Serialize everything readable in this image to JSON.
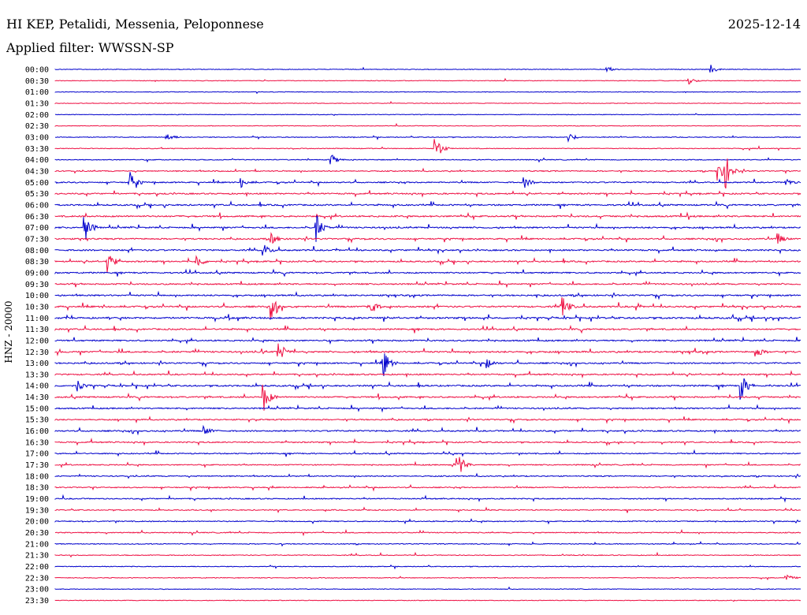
{
  "header": {
    "station": "HI KEP, Petalidi, Messenia, Peloponnese",
    "date": "2025-12-14",
    "filter": "Applied filter: WWSSN-SP"
  },
  "colors": {
    "even": "#0000cc",
    "odd": "#ee1144"
  },
  "chart_data": {
    "type": "line",
    "title": "HI KEP, Petalidi, Messenia, Peloponnese",
    "ylabel": "HNZ - 20000",
    "xlabel": "",
    "rows": [
      "00:00",
      "00:30",
      "01:00",
      "01:30",
      "02:00",
      "02:30",
      "03:00",
      "03:30",
      "04:00",
      "04:30",
      "05:00",
      "05:30",
      "06:00",
      "06:30",
      "07:00",
      "07:30",
      "08:00",
      "08:30",
      "09:00",
      "09:30",
      "10:00",
      "10:30",
      "11:00",
      "11:30",
      "12:00",
      "12:30",
      "13:00",
      "13:30",
      "14:00",
      "14:30",
      "15:00",
      "15:30",
      "16:00",
      "16:30",
      "17:00",
      "17:30",
      "18:00",
      "18:30",
      "19:00",
      "19:30",
      "20:00",
      "20:30",
      "21:00",
      "21:30",
      "22:00",
      "22:30",
      "23:00",
      "23:30"
    ],
    "activity": [
      0.04,
      0.05,
      0.04,
      0.03,
      0.03,
      0.03,
      0.12,
      0.12,
      0.18,
      0.35,
      0.45,
      0.55,
      0.6,
      0.65,
      0.6,
      0.55,
      0.6,
      0.55,
      0.55,
      0.55,
      0.6,
      0.7,
      0.75,
      0.6,
      0.55,
      0.7,
      0.55,
      0.55,
      0.65,
      0.6,
      0.5,
      0.45,
      0.55,
      0.45,
      0.4,
      0.35,
      0.35,
      0.35,
      0.35,
      0.3,
      0.3,
      0.3,
      0.2,
      0.15,
      0.12,
      0.1,
      0.06,
      0.05
    ],
    "events": [
      {
        "row": "00:00",
        "t": 0.74,
        "amp": 0.25
      },
      {
        "row": "00:00",
        "t": 0.88,
        "amp": 0.3
      },
      {
        "row": "00:30",
        "t": 0.85,
        "amp": 0.25
      },
      {
        "row": "03:00",
        "t": 0.15,
        "amp": 0.3
      },
      {
        "row": "03:00",
        "t": 0.69,
        "amp": 0.3
      },
      {
        "row": "03:30",
        "t": 0.51,
        "amp": 1.0
      },
      {
        "row": "04:00",
        "t": 0.37,
        "amp": 0.45
      },
      {
        "row": "04:30",
        "t": 0.89,
        "amp": 0.9
      },
      {
        "row": "04:30",
        "t": 0.9,
        "amp": 1.0
      },
      {
        "row": "05:00",
        "t": 0.1,
        "amp": 0.75
      },
      {
        "row": "05:00",
        "t": 0.25,
        "amp": 0.35
      },
      {
        "row": "05:00",
        "t": 0.63,
        "amp": 0.35
      },
      {
        "row": "05:00",
        "t": 0.98,
        "amp": 0.3
      },
      {
        "row": "07:00",
        "t": 0.04,
        "amp": 1.0
      },
      {
        "row": "07:00",
        "t": 0.35,
        "amp": 1.0
      },
      {
        "row": "07:30",
        "t": 0.29,
        "amp": 0.5
      },
      {
        "row": "07:30",
        "t": 0.97,
        "amp": 0.35
      },
      {
        "row": "08:00",
        "t": 0.28,
        "amp": 0.4
      },
      {
        "row": "08:30",
        "t": 0.07,
        "amp": 0.9
      },
      {
        "row": "08:30",
        "t": 0.19,
        "amp": 0.5
      },
      {
        "row": "10:30",
        "t": 0.29,
        "amp": 0.8
      },
      {
        "row": "10:30",
        "t": 0.42,
        "amp": 0.9
      },
      {
        "row": "10:30",
        "t": 0.68,
        "amp": 1.0
      },
      {
        "row": "12:30",
        "t": 0.3,
        "amp": 0.8
      },
      {
        "row": "12:30",
        "t": 0.94,
        "amp": 0.4
      },
      {
        "row": "13:00",
        "t": 0.44,
        "amp": 1.0
      },
      {
        "row": "13:00",
        "t": 0.58,
        "amp": 0.35
      },
      {
        "row": "14:00",
        "t": 0.03,
        "amp": 0.35
      },
      {
        "row": "14:00",
        "t": 0.92,
        "amp": 1.0
      },
      {
        "row": "14:30",
        "t": 0.28,
        "amp": 1.0
      },
      {
        "row": "16:00",
        "t": 0.2,
        "amp": 0.35
      },
      {
        "row": "17:30",
        "t": 0.54,
        "amp": 1.0
      },
      {
        "row": "22:30",
        "t": 0.98,
        "amp": 0.3
      }
    ]
  }
}
